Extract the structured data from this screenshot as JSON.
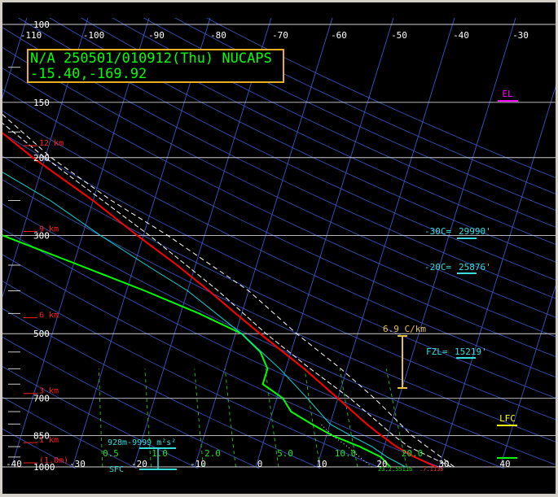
{
  "info_box": {
    "line1": "N/A 250501/010912(Thu) NUCAPS",
    "line2": "-15.40,-169.92"
  },
  "chart_data": {
    "type": "line",
    "pressure_ticks": [
      {
        "p": 100,
        "label": "100"
      },
      {
        "p": 150,
        "label": "150"
      },
      {
        "p": 200,
        "label": "200"
      },
      {
        "p": 300,
        "label": "300"
      },
      {
        "p": 500,
        "label": "500"
      },
      {
        "p": 700,
        "label": "700"
      },
      {
        "p": 850,
        "label": "850"
      },
      {
        "p": 1000,
        "label": "1000"
      }
    ],
    "top_temp_ticks": [
      "-110",
      "-100",
      "-90",
      "-80",
      "-70",
      "-60",
      "-50",
      "-40",
      "-30"
    ],
    "bottom_temp_ticks": [
      "-40",
      "-30",
      "-20",
      "-10",
      "0",
      "10",
      "20",
      "30",
      "40"
    ],
    "height_markers": [
      {
        "p": 192,
        "label": "12 km"
      },
      {
        "p": 300,
        "label": "9 km"
      },
      {
        "p": 470,
        "label": "6 km"
      },
      {
        "p": 697,
        "label": "3 km"
      },
      {
        "p": 900,
        "label": "1 km"
      },
      {
        "p": 1000,
        "label": "(1.0m)"
      }
    ],
    "mixing_ratio_labels": [
      "0.5",
      "1.0",
      "2.0",
      "5.0",
      "10.0",
      "20.0"
    ],
    "levels": [
      {
        "label": "EL",
        "color": "#ff00ff"
      },
      {
        "label": "LFC",
        "color": "#ffff00"
      }
    ],
    "annotations": {
      "m30c": {
        "label": "-30C=",
        "value": "29990'"
      },
      "m20c": {
        "label": "-20C=",
        "value": "25876'"
      },
      "fzl": {
        "label": "FZL=",
        "value": "15219'"
      },
      "lapse": "6.9 C/km",
      "helicity": "928m-9999 m²s²",
      "sfc": "SFC",
      "surface_values": [
        "23.2",
        ".55116",
        ".7.1136"
      ]
    },
    "series": [
      {
        "name": "temperature",
        "color": "#ff0000",
        "points": [
          [
            1000,
            29.5
          ],
          [
            950,
            25.5
          ],
          [
            900,
            22
          ],
          [
            850,
            19
          ],
          [
            800,
            16
          ],
          [
            700,
            10
          ],
          [
            600,
            3
          ],
          [
            500,
            -6
          ],
          [
            450,
            -11
          ],
          [
            400,
            -16.5
          ],
          [
            350,
            -23
          ],
          [
            300,
            -31
          ],
          [
            250,
            -40
          ],
          [
            200,
            -52
          ],
          [
            150,
            -66
          ],
          [
            130,
            -74
          ],
          [
            120,
            -78
          ],
          [
            110,
            -81
          ],
          [
            100,
            -84
          ]
        ]
      },
      {
        "name": "dewpoint",
        "color": "#00ff00",
        "points": [
          [
            1000,
            22
          ],
          [
            950,
            20
          ],
          [
            900,
            16
          ],
          [
            850,
            11
          ],
          [
            800,
            7
          ],
          [
            750,
            3
          ],
          [
            700,
            1
          ],
          [
            650,
            -3
          ],
          [
            600,
            -3
          ],
          [
            550,
            -5
          ],
          [
            500,
            -9
          ],
          [
            450,
            -17
          ],
          [
            400,
            -27
          ],
          [
            350,
            -39
          ],
          [
            300,
            -53
          ],
          [
            270,
            -62
          ],
          [
            250,
            -68
          ],
          [
            200,
            -82
          ],
          [
            150,
            -93
          ],
          [
            100,
            -100
          ]
        ]
      },
      {
        "name": "virtual_temperature",
        "color": "#ffffff",
        "dash": "6,3",
        "points": [
          [
            1000,
            32
          ],
          [
            900,
            24
          ],
          [
            850,
            21
          ],
          [
            700,
            12
          ],
          [
            600,
            4
          ],
          [
            500,
            -5
          ],
          [
            400,
            -15
          ],
          [
            300,
            -29
          ],
          [
            200,
            -50
          ],
          [
            150,
            -64
          ],
          [
            100,
            -82
          ]
        ]
      },
      {
        "name": "parcel_trace",
        "color": "#ffffff",
        "dash": "6,4",
        "points": [
          [
            1000,
            32.5
          ],
          [
            900,
            27
          ],
          [
            850,
            24
          ],
          [
            700,
            16
          ],
          [
            600,
            9
          ],
          [
            500,
            0
          ],
          [
            400,
            -10
          ],
          [
            300,
            -26
          ],
          [
            250,
            -37
          ],
          [
            200,
            -49
          ],
          [
            150,
            -62
          ],
          [
            100,
            -80
          ]
        ]
      },
      {
        "name": "wetbulb",
        "color": "#00dddd",
        "points": [
          [
            1000,
            24.5
          ],
          [
            950,
            21
          ],
          [
            900,
            18
          ],
          [
            850,
            14
          ],
          [
            800,
            10
          ],
          [
            700,
            5
          ],
          [
            600,
            -1
          ],
          [
            500,
            -9
          ],
          [
            400,
            -20
          ],
          [
            350,
            -28
          ],
          [
            300,
            -37
          ],
          [
            250,
            -47
          ],
          [
            200,
            -61
          ],
          [
            150,
            -73
          ],
          [
            100,
            -86
          ]
        ]
      },
      {
        "name": "downdraft",
        "color": "#ffffff",
        "dash": "1,3",
        "points": [
          [
            1000,
            19
          ],
          [
            950,
            16.5
          ],
          [
            900,
            14
          ],
          [
            850,
            11
          ],
          [
            800,
            8.5
          ]
        ]
      }
    ]
  }
}
